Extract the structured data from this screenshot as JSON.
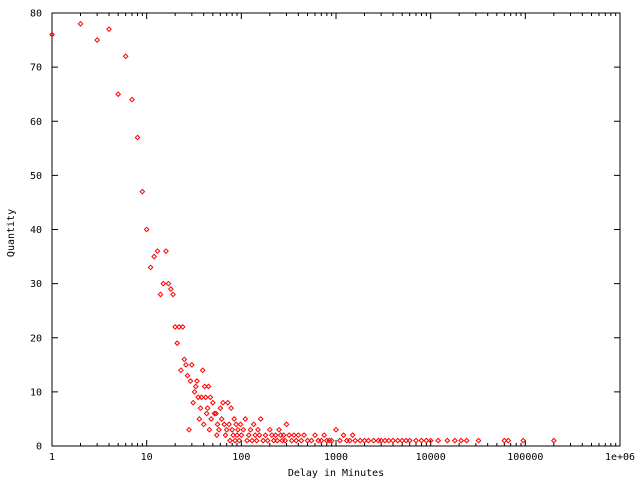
{
  "chart_data": {
    "type": "scatter",
    "title": "",
    "xlabel": "Delay in Minutes",
    "ylabel": "Quantity",
    "xscale": "log",
    "xlim": [
      1,
      1000000
    ],
    "ylim": [
      0,
      80
    ],
    "grid": false,
    "legend": "none",
    "marker_color": "#ff0000",
    "x_ticks": [
      {
        "value": 1,
        "label": "1"
      },
      {
        "value": 10,
        "label": "10"
      },
      {
        "value": 100,
        "label": "100"
      },
      {
        "value": 1000,
        "label": "1000"
      },
      {
        "value": 10000,
        "label": "10000"
      },
      {
        "value": 100000,
        "label": "100000"
      },
      {
        "value": 1000000,
        "label": "1e+06"
      }
    ],
    "y_ticks": [
      {
        "value": 0,
        "label": "0"
      },
      {
        "value": 10,
        "label": "10"
      },
      {
        "value": 20,
        "label": "20"
      },
      {
        "value": 30,
        "label": "30"
      },
      {
        "value": 40,
        "label": "40"
      },
      {
        "value": 50,
        "label": "50"
      },
      {
        "value": 60,
        "label": "60"
      },
      {
        "value": 70,
        "label": "70"
      },
      {
        "value": 80,
        "label": "80"
      }
    ],
    "points": [
      [
        1,
        76
      ],
      [
        2,
        78
      ],
      [
        3,
        75
      ],
      [
        4,
        77
      ],
      [
        5,
        65
      ],
      [
        6,
        72
      ],
      [
        7,
        64
      ],
      [
        8,
        57
      ],
      [
        9,
        47
      ],
      [
        10,
        40
      ],
      [
        11,
        33
      ],
      [
        12,
        35
      ],
      [
        13,
        36
      ],
      [
        14,
        28
      ],
      [
        15,
        30
      ],
      [
        16,
        36
      ],
      [
        17,
        30
      ],
      [
        18,
        29
      ],
      [
        19,
        28
      ],
      [
        20,
        22
      ],
      [
        21,
        19
      ],
      [
        22,
        22
      ],
      [
        23,
        14
      ],
      [
        24,
        22
      ],
      [
        25,
        16
      ],
      [
        26,
        15
      ],
      [
        27,
        13
      ],
      [
        28,
        3
      ],
      [
        29,
        12
      ],
      [
        30,
        15
      ],
      [
        31,
        8
      ],
      [
        32,
        10
      ],
      [
        33,
        11
      ],
      [
        34,
        12
      ],
      [
        35,
        9
      ],
      [
        36,
        5
      ],
      [
        37,
        7
      ],
      [
        38,
        9
      ],
      [
        39,
        14
      ],
      [
        40,
        4
      ],
      [
        41,
        11
      ],
      [
        42,
        9
      ],
      [
        43,
        6
      ],
      [
        44,
        7
      ],
      [
        45,
        11
      ],
      [
        46,
        3
      ],
      [
        47,
        9
      ],
      [
        48,
        5
      ],
      [
        50,
        8
      ],
      [
        52,
        6
      ],
      [
        54,
        6
      ],
      [
        55,
        2
      ],
      [
        56,
        4
      ],
      [
        58,
        3
      ],
      [
        60,
        7
      ],
      [
        62,
        5
      ],
      [
        64,
        8
      ],
      [
        66,
        4
      ],
      [
        68,
        2
      ],
      [
        70,
        3
      ],
      [
        72,
        8
      ],
      [
        74,
        4
      ],
      [
        76,
        1
      ],
      [
        78,
        7
      ],
      [
        80,
        3
      ],
      [
        82,
        2
      ],
      [
        84,
        5
      ],
      [
        86,
        1
      ],
      [
        88,
        4
      ],
      [
        90,
        2
      ],
      [
        92,
        3
      ],
      [
        95,
        1
      ],
      [
        98,
        4
      ],
      [
        100,
        2
      ],
      [
        105,
        3
      ],
      [
        110,
        5
      ],
      [
        115,
        1
      ],
      [
        120,
        2
      ],
      [
        125,
        3
      ],
      [
        130,
        1
      ],
      [
        135,
        4
      ],
      [
        140,
        2
      ],
      [
        145,
        1
      ],
      [
        150,
        3
      ],
      [
        155,
        2
      ],
      [
        160,
        5
      ],
      [
        170,
        1
      ],
      [
        180,
        2
      ],
      [
        190,
        1
      ],
      [
        200,
        3
      ],
      [
        210,
        2
      ],
      [
        220,
        1
      ],
      [
        230,
        2
      ],
      [
        240,
        1
      ],
      [
        250,
        3
      ],
      [
        260,
        2
      ],
      [
        270,
        1
      ],
      [
        280,
        2
      ],
      [
        290,
        1
      ],
      [
        300,
        4
      ],
      [
        320,
        2
      ],
      [
        340,
        1
      ],
      [
        360,
        2
      ],
      [
        380,
        1
      ],
      [
        400,
        2
      ],
      [
        430,
        1
      ],
      [
        460,
        2
      ],
      [
        500,
        1
      ],
      [
        550,
        1
      ],
      [
        600,
        2
      ],
      [
        650,
        1
      ],
      [
        700,
        1
      ],
      [
        750,
        2
      ],
      [
        800,
        1
      ],
      [
        850,
        1
      ],
      [
        900,
        1
      ],
      [
        1000,
        3
      ],
      [
        1100,
        1
      ],
      [
        1200,
        2
      ],
      [
        1300,
        1
      ],
      [
        1400,
        1
      ],
      [
        1500,
        2
      ],
      [
        1600,
        1
      ],
      [
        1800,
        1
      ],
      [
        2000,
        1
      ],
      [
        2200,
        1
      ],
      [
        2500,
        1
      ],
      [
        2800,
        1
      ],
      [
        3000,
        1
      ],
      [
        3300,
        1
      ],
      [
        3600,
        1
      ],
      [
        4000,
        1
      ],
      [
        4500,
        1
      ],
      [
        5000,
        1
      ],
      [
        5500,
        1
      ],
      [
        6000,
        1
      ],
      [
        7000,
        1
      ],
      [
        8000,
        1
      ],
      [
        9000,
        1
      ],
      [
        10000,
        1
      ],
      [
        12000,
        1
      ],
      [
        15000,
        1
      ],
      [
        18000,
        1
      ],
      [
        21000,
        1
      ],
      [
        24000,
        1
      ],
      [
        32000,
        1
      ],
      [
        60000,
        1
      ],
      [
        66000,
        1
      ],
      [
        95000,
        1
      ],
      [
        200000,
        1
      ]
    ]
  }
}
